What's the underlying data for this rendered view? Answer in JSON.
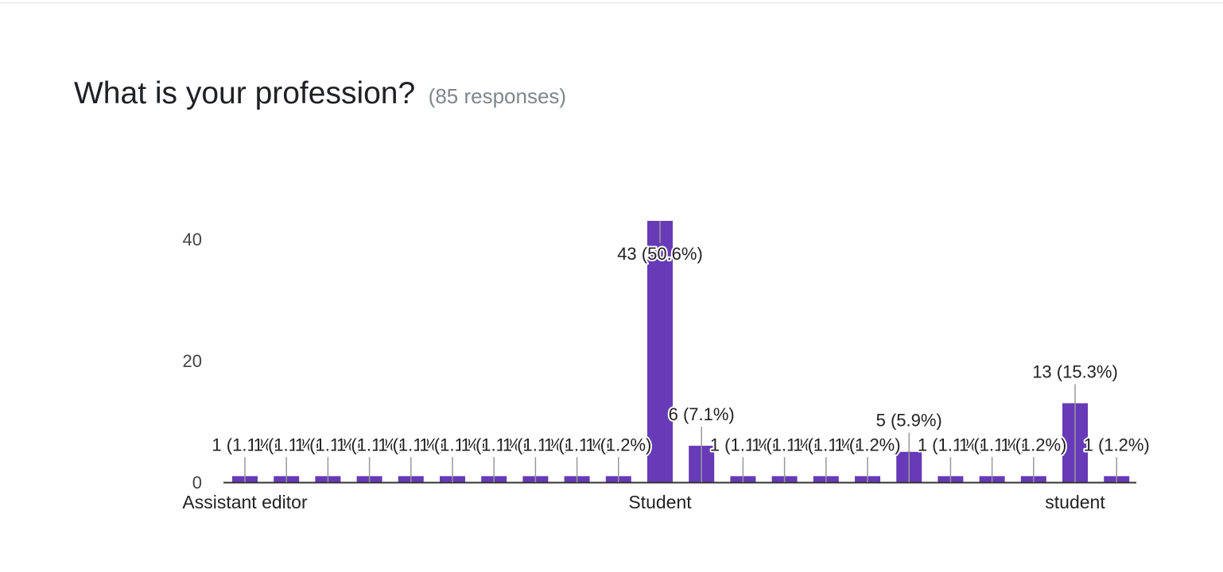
{
  "question": {
    "title": "What is your profession?",
    "responses": "(85 responses)"
  },
  "colors": {
    "bar": "#673ab7",
    "axis": "#333333",
    "leader": "#999999"
  },
  "chart_data": {
    "type": "bar",
    "title": "What is your profession?",
    "xlabel": "",
    "ylabel": "",
    "ylim": [
      0,
      43
    ],
    "yticks": [
      0,
      20,
      40
    ],
    "grid": false,
    "legend": "none",
    "values": [
      1,
      1,
      1,
      1,
      1,
      1,
      1,
      1,
      1,
      1,
      43,
      6,
      1,
      1,
      1,
      1,
      5,
      1,
      1,
      1,
      13,
      1
    ],
    "labels": [
      "1 (1.1%)",
      "1 (1.1%)",
      "1 (1.1%)",
      "1 (1.1%)",
      "1 (1.1%)",
      "1 (1.1%)",
      "1 (1.1%)",
      "1 (1.1%)",
      "1 (1.1%)",
      "1 (1.2%)",
      "43 (50.6%)",
      "6 (7.1%)",
      "1 (1.1%)",
      "1 (1.1%)",
      "1 (1.1%)",
      "1 (1.2%)",
      "5 (5.9%)",
      "1 (1.1%)",
      "1 (1.1%)",
      "1 (1.2%)",
      "13 (15.3%)",
      "1 (1.2%)"
    ],
    "category_labels": [
      {
        "index": 0,
        "text": "Assistant editor"
      },
      {
        "index": 10,
        "text": "Student"
      },
      {
        "index": 20,
        "text": "student"
      }
    ]
  }
}
